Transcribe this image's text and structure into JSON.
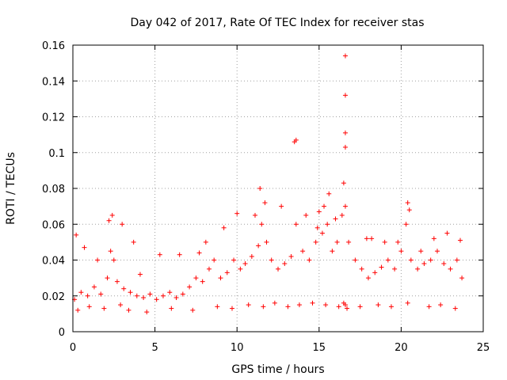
{
  "chart_data": {
    "type": "scatter",
    "title": "Day 042 of 2017, Rate Of TEC Index for receiver stas",
    "xlabel": "GPS time / hours",
    "ylabel": "ROTI / TECUs",
    "xlim": [
      0,
      25
    ],
    "ylim": [
      0,
      0.16
    ],
    "xticks": [
      0,
      5,
      10,
      15,
      20,
      25
    ],
    "xtick_labels": [
      "0",
      "5",
      "10",
      "15",
      "20",
      "25"
    ],
    "yticks": [
      0,
      0.02,
      0.04,
      0.06,
      0.08,
      0.1,
      0.12,
      0.14,
      0.16
    ],
    "ytick_labels": [
      "0",
      "0.02",
      "0.04",
      "0.06",
      "0.08",
      "0.1",
      "0.12",
      "0.14",
      "0.16"
    ],
    "grid": true,
    "marker": "+",
    "color": "#ff0000",
    "series": [
      {
        "name": "ROTI",
        "x": [
          0.1,
          0.5,
          0.9,
          1.3,
          1.7,
          2.1,
          2.3,
          2.4,
          2.5,
          2.7,
          3.1,
          3.5,
          3.9,
          4.3,
          4.7,
          5.1,
          5.5,
          5.9,
          6.3,
          6.7,
          7.1,
          7.5,
          7.9,
          8.3,
          8.6,
          9.0,
          9.4,
          9.8,
          10.2,
          10.5,
          10.9,
          11.3,
          11.5,
          11.8,
          12.1,
          12.5,
          12.9,
          13.3,
          13.6,
          14.0,
          14.4,
          14.8,
          15.2,
          15.5,
          15.8,
          16.1,
          16.4,
          16.6,
          16.8,
          17.2,
          17.6,
          18.0,
          18.4,
          18.8,
          19.2,
          19.6,
          20.0,
          20.3,
          20.6,
          21.0,
          21.4,
          21.8,
          22.2,
          22.6,
          23.0,
          23.4,
          23.7,
          0.3,
          1.0,
          1.9,
          2.9,
          3.4,
          4.5,
          6.0,
          7.3,
          8.8,
          9.7,
          10.7,
          11.6,
          12.3,
          13.1,
          13.8,
          14.6,
          15.4,
          16.2,
          16.5,
          16.6,
          16.7,
          17.5,
          18.6,
          19.4,
          20.4,
          21.7,
          22.4,
          23.3,
          0.2,
          0.7,
          1.5,
          2.2,
          3.0,
          3.7,
          4.1,
          5.3,
          6.5,
          7.7,
          8.1,
          9.2,
          10.0,
          11.1,
          11.4,
          11.7,
          12.7,
          13.5,
          13.6,
          14.2,
          14.9,
          15.0,
          15.3,
          15.6,
          16.0,
          16.5,
          16.6,
          16.6,
          16.6,
          16.6,
          17.9,
          18.2,
          19.0,
          19.8,
          20.4,
          20.5,
          21.2,
          22.0,
          22.8,
          23.6
        ],
        "y": [
          0.018,
          0.022,
          0.02,
          0.025,
          0.021,
          0.03,
          0.045,
          0.065,
          0.04,
          0.028,
          0.024,
          0.022,
          0.02,
          0.019,
          0.021,
          0.018,
          0.02,
          0.022,
          0.019,
          0.021,
          0.025,
          0.03,
          0.028,
          0.035,
          0.04,
          0.03,
          0.033,
          0.04,
          0.035,
          0.038,
          0.042,
          0.048,
          0.06,
          0.05,
          0.04,
          0.035,
          0.038,
          0.042,
          0.06,
          0.045,
          0.04,
          0.05,
          0.055,
          0.06,
          0.045,
          0.05,
          0.065,
          0.07,
          0.05,
          0.04,
          0.035,
          0.03,
          0.033,
          0.036,
          0.04,
          0.035,
          0.045,
          0.06,
          0.04,
          0.035,
          0.038,
          0.04,
          0.045,
          0.038,
          0.035,
          0.04,
          0.03,
          0.012,
          0.014,
          0.013,
          0.015,
          0.012,
          0.011,
          0.013,
          0.012,
          0.014,
          0.013,
          0.015,
          0.014,
          0.016,
          0.014,
          0.015,
          0.016,
          0.015,
          0.014,
          0.016,
          0.015,
          0.013,
          0.014,
          0.015,
          0.014,
          0.016,
          0.014,
          0.015,
          0.013,
          0.054,
          0.047,
          0.04,
          0.062,
          0.06,
          0.05,
          0.032,
          0.043,
          0.043,
          0.044,
          0.05,
          0.058,
          0.066,
          0.065,
          0.08,
          0.072,
          0.07,
          0.106,
          0.107,
          0.065,
          0.058,
          0.067,
          0.07,
          0.077,
          0.063,
          0.083,
          0.103,
          0.111,
          0.132,
          0.154,
          0.052,
          0.052,
          0.05,
          0.05,
          0.072,
          0.068,
          0.045,
          0.052,
          0.055,
          0.051
        ]
      }
    ]
  }
}
